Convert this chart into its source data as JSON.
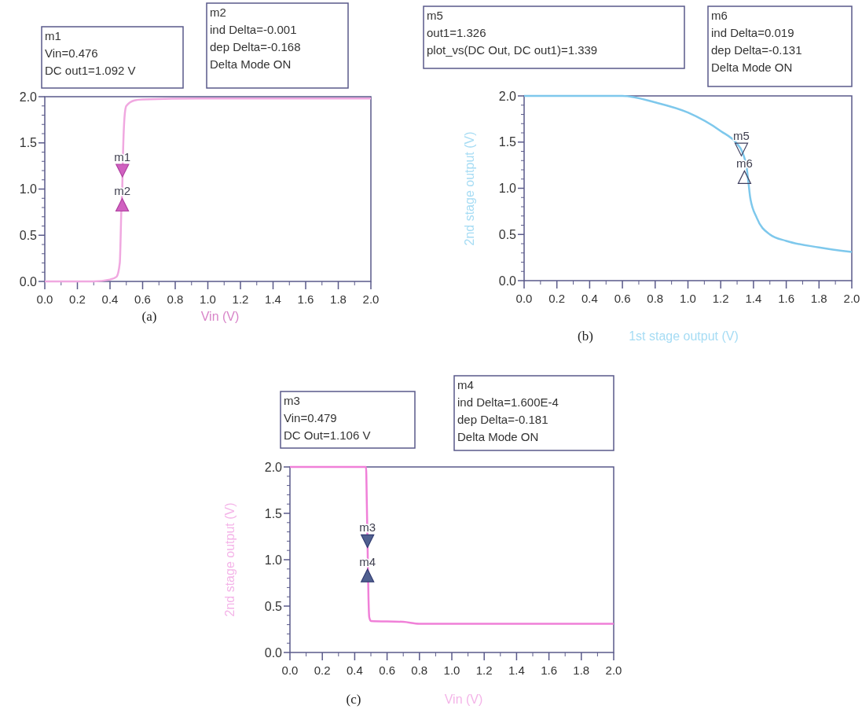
{
  "chart_data": [
    {
      "type": "line",
      "xlabel": "Vin (V)",
      "x": [
        0,
        0.3,
        0.4,
        0.44,
        0.46,
        0.47,
        0.475,
        0.48,
        0.49,
        0.5,
        0.55,
        0.6,
        1.0,
        2.0
      ],
      "series": [
        {
          "color": "#f0a8e0",
          "values": [
            0,
            0,
            0.02,
            0.05,
            0.2,
            0.8,
            1.0,
            1.4,
            1.8,
            1.9,
            1.96,
            1.97,
            1.98,
            1.98
          ]
        }
      ],
      "xlim": [
        0,
        2
      ],
      "ylim": [
        0,
        2
      ],
      "xticks": [
        {
          "value": 0,
          "label": "0.0"
        },
        {
          "value": 0.2,
          "label": "0.2"
        },
        {
          "value": 0.4,
          "label": "0.4"
        },
        {
          "value": 0.6,
          "label": "0.6"
        },
        {
          "value": 0.8,
          "label": "0.8"
        },
        {
          "value": 1,
          "label": "1.0"
        },
        {
          "value": 1.2,
          "label": "1.2"
        },
        {
          "value": 1.4,
          "label": "1.4"
        },
        {
          "value": 1.6,
          "label": "1.6"
        },
        {
          "value": 1.8,
          "label": "1.8"
        },
        {
          "value": 2,
          "label": "2.0"
        }
      ],
      "yticks": [
        {
          "value": 0,
          "label": "0.0"
        },
        {
          "value": 0.5,
          "label": "0.5"
        },
        {
          "value": 1,
          "label": "1.0"
        },
        {
          "value": 1.5,
          "label": "1.5"
        },
        {
          "value": 2,
          "label": "2.0"
        }
      ],
      "grid": false,
      "marker": "none",
      "line_style": "solid",
      "annotations": [
        "m1\nVin=0.476\nDC out1=1.092 V",
        "m2\nind Delta=-0.001\ndep Delta=-0.168\nDelta Mode ON",
        "(a)",
        {
          "text": "m1",
          "x": 0.476,
          "y": 1.2
        },
        {
          "text": "m2",
          "x": 0.475,
          "y": 0.83
        }
      ]
    },
    {
      "type": "line",
      "xlabel": "1st stage output (V)",
      "ylabel": "2nd stage output (V)",
      "x": [
        0,
        0.6,
        0.8,
        1.0,
        1.2,
        1.3,
        1.33,
        1.36,
        1.37,
        1.38,
        1.42,
        1.5,
        1.6,
        1.8,
        2.0
      ],
      "series": [
        {
          "color": "#7ec8ec",
          "values": [
            2,
            2,
            1.93,
            1.82,
            1.62,
            1.48,
            1.4,
            1.2,
            1.05,
            0.9,
            0.68,
            0.5,
            0.43,
            0.36,
            0.31
          ]
        }
      ],
      "xlim": [
        0,
        2
      ],
      "ylim": [
        0,
        2
      ],
      "xticks": [
        {
          "value": 0,
          "label": "0.0"
        },
        {
          "value": 0.2,
          "label": "0.2"
        },
        {
          "value": 0.4,
          "label": "0.4"
        },
        {
          "value": 0.6,
          "label": "0.6"
        },
        {
          "value": 0.8,
          "label": "0.8"
        },
        {
          "value": 1,
          "label": "1.0"
        },
        {
          "value": 1.2,
          "label": "1.2"
        },
        {
          "value": 1.4,
          "label": "1.4"
        },
        {
          "value": 1.6,
          "label": "1.6"
        },
        {
          "value": 1.8,
          "label": "1.8"
        },
        {
          "value": 2,
          "label": "2.0"
        }
      ],
      "yticks": [
        {
          "value": 0,
          "label": "0.0"
        },
        {
          "value": 0.5,
          "label": "0.5"
        },
        {
          "value": 1,
          "label": "1.0"
        },
        {
          "value": 1.5,
          "label": "1.5"
        },
        {
          "value": 2,
          "label": "2.0"
        }
      ],
      "grid": false,
      "marker": "none",
      "line_style": "solid",
      "annotations": [
        "m5\nout1=1.326\nplot_vs(DC Out, DC out1)=1.339",
        "m6\nind Delta=0.019\ndep Delta=-0.131\nDelta Mode ON",
        "(b)",
        {
          "text": "m5",
          "x": 1.326,
          "y": 1.42
        },
        {
          "text": "m6",
          "x": 1.345,
          "y": 1.12
        }
      ]
    },
    {
      "type": "line",
      "xlabel": "Vin (V)",
      "ylabel": "2nd stage output (V)",
      "x": [
        0,
        0.47,
        0.475,
        0.48,
        0.485,
        0.49,
        0.5,
        0.7,
        0.8,
        2.0
      ],
      "series": [
        {
          "color": "#f080d8",
          "values": [
            2,
            2,
            1.6,
            1.1,
            0.6,
            0.38,
            0.34,
            0.33,
            0.31,
            0.31
          ]
        }
      ],
      "xlim": [
        0,
        2
      ],
      "ylim": [
        0,
        2
      ],
      "xticks": [
        {
          "value": 0,
          "label": "0.0"
        },
        {
          "value": 0.2,
          "label": "0.2"
        },
        {
          "value": 0.4,
          "label": "0.4"
        },
        {
          "value": 0.6,
          "label": "0.6"
        },
        {
          "value": 0.8,
          "label": "0.8"
        },
        {
          "value": 1,
          "label": "1.0"
        },
        {
          "value": 1.2,
          "label": "1.2"
        },
        {
          "value": 1.4,
          "label": "1.4"
        },
        {
          "value": 1.6,
          "label": "1.6"
        },
        {
          "value": 1.8,
          "label": "1.8"
        },
        {
          "value": 2,
          "label": "2.0"
        }
      ],
      "yticks": [
        {
          "value": 0,
          "label": "0.0"
        },
        {
          "value": 0.5,
          "label": "0.5"
        },
        {
          "value": 1,
          "label": "1.0"
        },
        {
          "value": 1.5,
          "label": "1.5"
        },
        {
          "value": 2,
          "label": "2.0"
        }
      ],
      "grid": false,
      "marker": "none",
      "line_style": "solid",
      "annotations": [
        "m3\nVin=0.479\nDC Out=1.106 V",
        "m4\nind Delta=1.600E-4\ndep Delta=-0.181\nDelta Mode ON",
        "(c)",
        {
          "text": "m3",
          "x": 0.479,
          "y": 1.2
        },
        {
          "text": "m4",
          "x": 0.479,
          "y": 0.83
        }
      ]
    }
  ]
}
